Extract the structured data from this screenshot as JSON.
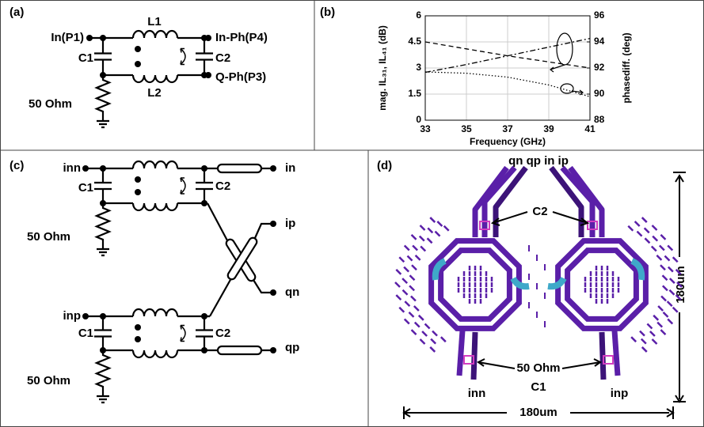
{
  "panel_a": {
    "label": "(a)",
    "in_port": "In(P1)",
    "l1": "L1",
    "out_i": "In-Ph(P4)",
    "c1": "C1",
    "c2": "C2",
    "out_q": "Q-Ph(P3)",
    "l2": "L2",
    "resistor": "50 Ohm"
  },
  "chart_data": {
    "type": "line",
    "panel_label": "(b)",
    "xlabel": "Frequency (GHz)",
    "ylabel": "mag. IL₃₁, IL₄₁ (dB)",
    "y2label": "phasediff. (deg)",
    "x": [
      33,
      35,
      37,
      39,
      41
    ],
    "xlim": [
      33,
      41
    ],
    "xticks": [
      33,
      35,
      37,
      39,
      41
    ],
    "ylim": [
      0,
      6
    ],
    "yticks": [
      0,
      1.5,
      3,
      4.5,
      6
    ],
    "y2lim": [
      88,
      96
    ],
    "y2ticks": [
      88,
      90,
      92,
      94,
      96
    ],
    "grid": true,
    "series": [
      {
        "color": "#000000",
        "style": "dashed",
        "values": [
          4.5,
          4.1,
          3.7,
          3.35,
          3.0
        ]
      },
      {
        "color": "#000000",
        "style": "dashdot",
        "values": [
          2.75,
          3.2,
          3.7,
          4.2,
          4.7
        ]
      },
      {
        "color": "#000000",
        "style": "dotted",
        "axis": "y2",
        "values": [
          91.7,
          91.6,
          91.3,
          90.7,
          89.8
        ]
      }
    ]
  },
  "panel_c": {
    "label": "(c)",
    "top": {
      "in_port": "inn",
      "c1": "C1",
      "c2": "C2",
      "resistor": "50 Ohm"
    },
    "bottom": {
      "in_port": "inp",
      "c1": "C1",
      "c2": "C2",
      "resistor": "50 Ohm"
    },
    "outputs": [
      "in",
      "ip",
      "qn",
      "qp"
    ]
  },
  "panel_d": {
    "label": "(d)",
    "top_ports": "qn qp in ip",
    "c2": "C2",
    "height": "180um",
    "resistor": "50 Ohm",
    "c1": "C1",
    "left_port": "inn",
    "right_port": "inp",
    "width": "180um"
  }
}
